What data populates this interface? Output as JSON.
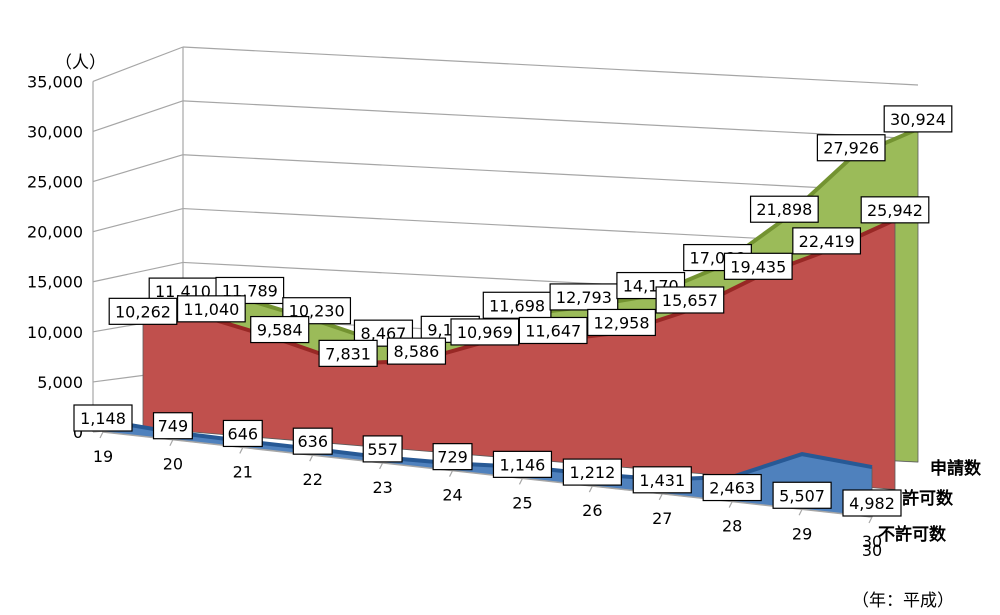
{
  "chart_data": {
    "type": "area",
    "unit_label": "（人）",
    "x_unit_label": "（年：平成）",
    "categories": [
      "19",
      "20",
      "21",
      "22",
      "23",
      "24",
      "25",
      "26",
      "27",
      "28",
      "29",
      "30"
    ],
    "y_ticks": [
      "35,000",
      "30,000",
      "25,000",
      "20,000",
      "15,000",
      "10,000",
      "5,000",
      "0"
    ],
    "ylim": [
      0,
      35000
    ],
    "series": [
      {
        "name": "申請数",
        "color": "#9bbb59",
        "values": [
          11410,
          11789,
          10230,
          8467,
          9143,
          11698,
          12793,
          14170,
          17088,
          21898,
          27926,
          30924
        ],
        "labels": [
          "11,410",
          "11,789",
          "10,230",
          "8,467",
          "9,143",
          "11,698",
          "12,793",
          "14,170",
          "17,088",
          "21,898",
          "27,926",
          "30,924"
        ]
      },
      {
        "name": "許可数",
        "color": "#c0504d",
        "values": [
          10262,
          11040,
          9584,
          7831,
          8586,
          10969,
          11647,
          12958,
          15657,
          19435,
          22419,
          25942
        ],
        "labels": [
          "10,262",
          "11,040",
          "9,584",
          "7,831",
          "8,586",
          "10,969",
          "11,647",
          "12,958",
          "15,657",
          "19,435",
          "22,419",
          "25,942"
        ]
      },
      {
        "name": "不許可数",
        "color": "#4f81bd",
        "values": [
          1148,
          749,
          646,
          636,
          557,
          729,
          1146,
          1212,
          1431,
          2463,
          5507,
          4982
        ],
        "labels": [
          "1,148",
          "749",
          "646",
          "636",
          "557",
          "729",
          "1,146",
          "1,212",
          "1,431",
          "2,463",
          "5,507",
          "4,982"
        ]
      }
    ],
    "grid": true
  }
}
